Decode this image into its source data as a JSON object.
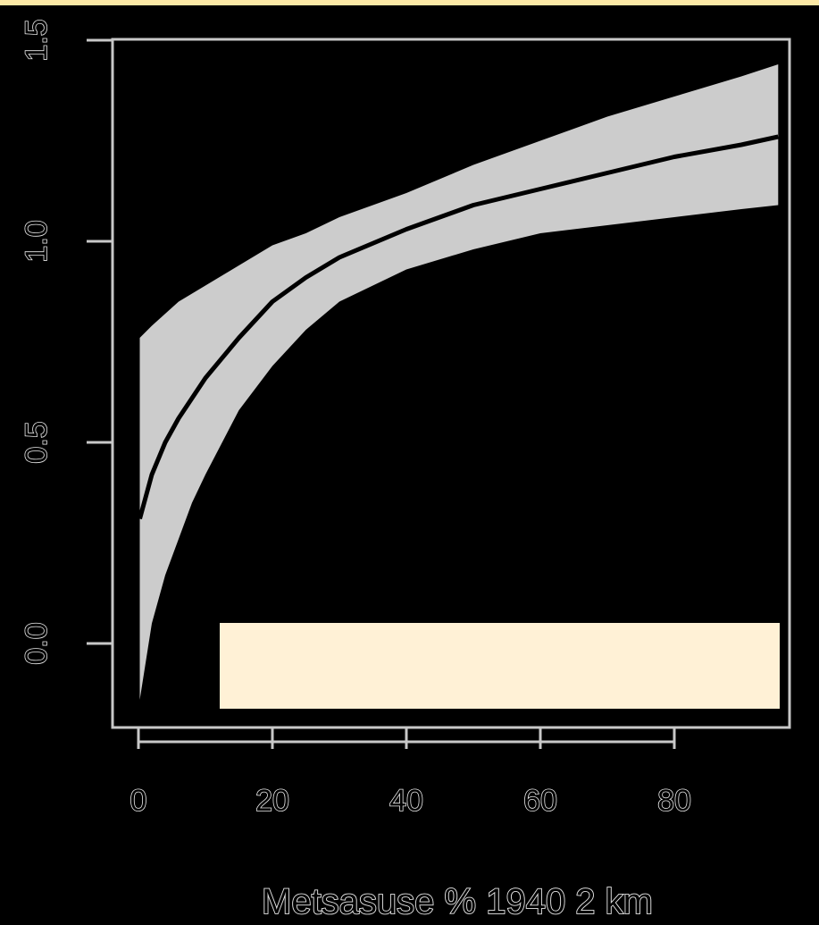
{
  "colors": {
    "background": "#000000",
    "top_strip": "#fde9a6",
    "band_fill": "#cccccc",
    "line": "#000000",
    "frame": "#c8c8c8",
    "overlay_box": "#fff1d6"
  },
  "chart_data": {
    "type": "line",
    "title": "",
    "xlabel": "Metsasuse % 1940 2 km",
    "ylabel": "",
    "xlim": [
      0,
      97
    ],
    "ylim": [
      -0.15,
      1.5
    ],
    "xticks": [
      0,
      20,
      40,
      60,
      80
    ],
    "xtick_labels": [
      "0",
      "20",
      "40",
      "60",
      "80"
    ],
    "yticks": [
      0.0,
      0.5,
      1.0,
      1.5
    ],
    "ytick_labels": [
      "0.0",
      "0.5",
      "1.0",
      "1.5"
    ],
    "grid": false,
    "legend": "none",
    "x": [
      0.2,
      2,
      4,
      6,
      8,
      10,
      15,
      20,
      25,
      30,
      40,
      50,
      60,
      70,
      80,
      90,
      95.5
    ],
    "series": [
      {
        "values": [
          0.31,
          0.42,
          0.5,
          0.56,
          0.61,
          0.66,
          0.76,
          0.85,
          0.91,
          0.96,
          1.03,
          1.09,
          1.13,
          1.17,
          1.21,
          1.24,
          1.26
        ],
        "lower": [
          -0.14,
          0.05,
          0.17,
          0.26,
          0.35,
          0.42,
          0.58,
          0.69,
          0.78,
          0.85,
          0.93,
          0.98,
          1.02,
          1.04,
          1.06,
          1.08,
          1.09
        ],
        "upper": [
          0.76,
          0.79,
          0.82,
          0.85,
          0.87,
          0.89,
          0.94,
          0.99,
          1.02,
          1.06,
          1.12,
          1.19,
          1.25,
          1.31,
          1.36,
          1.41,
          1.44
        ]
      }
    ]
  }
}
